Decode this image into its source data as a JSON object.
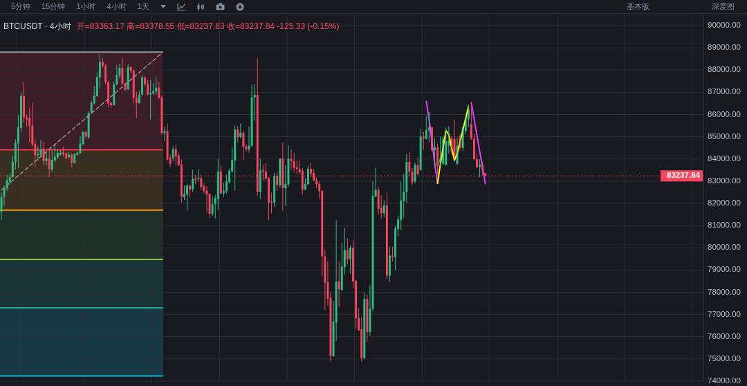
{
  "chart_data": {
    "type": "candlestick",
    "title": "BTCUSDT · 4小时",
    "subtitle": "开=83363.17 高=83378.55 低=83237.83 收=83237.84 -125.33 (-0.15%)",
    "annotations": [
      "5分钟",
      "15分钟",
      "1小时",
      "4小时",
      "1天",
      "基本版",
      "深度图"
    ],
    "categories": [
      null,
      null,
      null,
      null,
      null,
      null,
      null,
      null,
      null,
      null,
      null,
      null,
      null,
      null,
      null,
      null,
      null,
      null,
      null,
      null,
      null,
      null,
      null,
      null,
      null,
      null,
      null,
      null,
      null,
      null,
      null,
      null,
      null,
      null,
      null,
      null,
      null,
      null,
      null,
      null,
      null,
      null,
      null,
      null,
      null,
      null,
      null,
      null,
      null,
      null,
      null,
      null,
      null,
      null,
      null,
      null,
      null,
      null,
      null,
      null,
      null,
      null,
      null,
      null,
      null,
      null,
      null,
      null,
      null,
      null,
      null,
      null,
      null,
      null,
      null,
      null,
      null,
      null,
      null,
      null,
      null,
      null,
      null,
      null,
      null,
      null,
      null,
      null,
      null,
      null,
      null,
      null,
      null,
      null,
      null,
      null,
      null,
      null,
      null,
      null,
      null,
      null,
      null,
      null,
      null,
      null,
      null,
      null,
      null,
      null,
      null,
      null,
      null,
      null,
      null,
      null,
      null,
      null,
      null,
      null,
      null,
      null,
      null,
      null,
      null,
      null,
      null,
      null,
      null,
      null,
      null,
      null,
      null,
      null,
      null,
      null,
      null,
      null,
      null,
      null,
      null,
      null,
      null,
      null,
      null,
      null,
      null,
      null,
      null,
      null,
      null,
      null,
      null,
      null,
      null,
      null,
      null,
      null,
      null,
      null,
      null,
      null,
      null,
      null,
      null,
      null,
      null,
      null,
      null,
      null,
      null,
      null,
      null,
      null,
      null,
      null,
      null,
      null,
      null,
      null,
      null,
      null,
      null,
      null,
      null,
      null,
      null,
      null,
      null,
      null,
      null,
      null,
      null,
      null,
      null,
      null,
      null,
      null,
      null,
      null,
      null,
      null,
      null,
      null,
      null,
      null,
      null,
      null,
      null,
      null,
      null,
      null,
      null,
      null,
      null,
      null,
      null,
      null,
      null,
      null,
      null,
      null,
      null,
      null,
      null,
      null,
      null,
      null,
      null,
      null,
      null,
      null,
      null,
      null,
      null,
      null,
      null,
      null,
      null,
      null,
      null,
      null,
      null,
      null,
      null,
      null,
      null,
      null,
      null,
      null
    ],
    "ohlc": [
      [
        81630,
        82500,
        81250,
        82290
      ],
      [
        82290,
        82810,
        81880,
        82700
      ],
      [
        82670,
        83270,
        82550,
        83040
      ],
      [
        82980,
        83370,
        82840,
        83180
      ],
      [
        83180,
        84140,
        83160,
        83880
      ],
      [
        83860,
        84880,
        83520,
        84720
      ],
      [
        84700,
        85980,
        83590,
        85420
      ],
      [
        85400,
        87000,
        85210,
        86850
      ],
      [
        86830,
        87460,
        85640,
        85880
      ],
      [
        85870,
        86010,
        85440,
        85780
      ],
      [
        85830,
        86290,
        84750,
        85500
      ],
      [
        85500,
        86520,
        84580,
        84650
      ],
      [
        84680,
        84900,
        83660,
        84170
      ],
      [
        84170,
        84580,
        83930,
        84210
      ],
      [
        84190,
        84850,
        84090,
        84440
      ],
      [
        84440,
        84780,
        83700,
        83900
      ],
      [
        83900,
        84320,
        83700,
        84030
      ],
      [
        84010,
        84390,
        83180,
        83540
      ],
      [
        83520,
        84390,
        83400,
        83960
      ],
      [
        83930,
        84620,
        83860,
        84090
      ],
      [
        84070,
        84440,
        83980,
        84270
      ],
      [
        84190,
        84410,
        84140,
        84290
      ],
      [
        84290,
        84550,
        84110,
        84210
      ],
      [
        84250,
        84290,
        83980,
        84030
      ],
      [
        84070,
        84310,
        84050,
        84190
      ],
      [
        84190,
        84260,
        83620,
        83830
      ],
      [
        83830,
        84270,
        83780,
        84210
      ],
      [
        84190,
        84310,
        84160,
        84290
      ],
      [
        84260,
        85030,
        84240,
        84700
      ],
      [
        84680,
        85260,
        84600,
        85210
      ],
      [
        85210,
        85260,
        84950,
        85010
      ],
      [
        84980,
        86130,
        84900,
        86070
      ],
      [
        86070,
        86620,
        86050,
        86520
      ],
      [
        86500,
        87280,
        86440,
        86850
      ],
      [
        86830,
        87890,
        86800,
        87690
      ],
      [
        87670,
        88740,
        87160,
        88370
      ],
      [
        88370,
        88540,
        88080,
        88200
      ],
      [
        88200,
        88300,
        87360,
        87460
      ],
      [
        87460,
        87490,
        86340,
        86490
      ],
      [
        86520,
        86590,
        86320,
        86420
      ],
      [
        86420,
        87490,
        86390,
        87360
      ],
      [
        87340,
        88230,
        87310,
        87770
      ],
      [
        87750,
        88280,
        87620,
        88100
      ],
      [
        88100,
        88540,
        87340,
        87380
      ],
      [
        87380,
        87460,
        87050,
        87110
      ],
      [
        87140,
        88260,
        87080,
        88130
      ],
      [
        88130,
        88180,
        87870,
        87960
      ],
      [
        87980,
        88030,
        86440,
        86750
      ],
      [
        86750,
        87030,
        85850,
        86520
      ],
      [
        86520,
        87050,
        86490,
        86900
      ],
      [
        86900,
        87770,
        86850,
        87670
      ],
      [
        87670,
        87720,
        87260,
        87380
      ],
      [
        87380,
        87570,
        86850,
        86900
      ],
      [
        86900,
        87550,
        85780,
        86970
      ],
      [
        86950,
        87410,
        86900,
        87050
      ],
      [
        87030,
        87720,
        86900,
        87210
      ],
      [
        87210,
        87490,
        86700,
        86750
      ],
      [
        86770,
        86850,
        85110,
        85160
      ],
      [
        85160,
        85440,
        84800,
        85260
      ],
      [
        85250,
        85600,
        83930,
        83980
      ],
      [
        84060,
        84210,
        83650,
        83780
      ],
      [
        84060,
        84570,
        83900,
        84440
      ],
      [
        84440,
        84640,
        83720,
        84110
      ],
      [
        84160,
        84290,
        83680,
        83720
      ],
      [
        83750,
        83990,
        82040,
        82290
      ],
      [
        82290,
        82800,
        82160,
        82420
      ],
      [
        82390,
        82880,
        81650,
        82800
      ],
      [
        82800,
        82830,
        82290,
        82620
      ],
      [
        82630,
        83520,
        82520,
        83110
      ],
      [
        83110,
        83290,
        82880,
        83050
      ],
      [
        83090,
        83550,
        82980,
        83140
      ],
      [
        83140,
        83290,
        82590,
        82730
      ],
      [
        82780,
        82930,
        82450,
        82550
      ],
      [
        82570,
        82780,
        81600,
        82390
      ],
      [
        82420,
        82450,
        81340,
        81530
      ],
      [
        81530,
        82320,
        81430,
        81960
      ],
      [
        81960,
        82390,
        81320,
        82250
      ],
      [
        82200,
        83990,
        81700,
        83440
      ],
      [
        83440,
        83720,
        82420,
        82450
      ],
      [
        82450,
        82930,
        82290,
        82570
      ],
      [
        82550,
        83290,
        82450,
        82980
      ],
      [
        82960,
        83550,
        82900,
        83470
      ],
      [
        83440,
        84520,
        83390,
        83960
      ],
      [
        83930,
        85520,
        82570,
        85320
      ],
      [
        85320,
        85490,
        84740,
        84980
      ],
      [
        84980,
        85590,
        84930,
        85180
      ],
      [
        85180,
        85290,
        83930,
        84540
      ],
      [
        84570,
        84670,
        84330,
        84440
      ],
      [
        84440,
        85460,
        84290,
        84600
      ],
      [
        84600,
        87360,
        84530,
        86770
      ],
      [
        86770,
        87370,
        85740,
        86890
      ],
      [
        86890,
        88530,
        82350,
        82520
      ],
      [
        82520,
        84010,
        82200,
        83490
      ],
      [
        83490,
        83740,
        83030,
        83440
      ],
      [
        83440,
        83800,
        83060,
        83110
      ],
      [
        83140,
        83190,
        81230,
        82040
      ],
      [
        82060,
        82490,
        81550,
        82010
      ],
      [
        82040,
        83370,
        81840,
        83240
      ],
      [
        83240,
        83410,
        82590,
        82830
      ],
      [
        82830,
        84030,
        82700,
        84010
      ],
      [
        84010,
        84740,
        81670,
        82680
      ],
      [
        82680,
        83720,
        81880,
        82880
      ],
      [
        82860,
        84620,
        82760,
        84010
      ],
      [
        84010,
        84440,
        83490,
        83900
      ],
      [
        83900,
        84270,
        83390,
        83600
      ],
      [
        83620,
        83930,
        83340,
        83550
      ],
      [
        83550,
        83930,
        83340,
        83410
      ],
      [
        83470,
        83600,
        82390,
        82620
      ],
      [
        82620,
        83140,
        82590,
        82880
      ],
      [
        82860,
        83700,
        82830,
        83550
      ],
      [
        83550,
        83820,
        83190,
        83340
      ],
      [
        83370,
        83550,
        83000,
        83030
      ],
      [
        83050,
        83190,
        82680,
        82860
      ],
      [
        82880,
        82980,
        82210,
        82550
      ],
      [
        82570,
        82590,
        78730,
        79620
      ],
      [
        79620,
        79910,
        77200,
        78430
      ],
      [
        78450,
        79390,
        77370,
        77710
      ],
      [
        77740,
        77990,
        74890,
        75120
      ],
      [
        75120,
        77610,
        75100,
        76690
      ],
      [
        76640,
        81250,
        75810,
        78490
      ],
      [
        78490,
        79370,
        77340,
        78140
      ],
      [
        78110,
        80230,
        78060,
        79160
      ],
      [
        79130,
        80900,
        78800,
        79900
      ],
      [
        79900,
        80430,
        79240,
        79490
      ],
      [
        79490,
        80110,
        78830,
        80000
      ],
      [
        80000,
        80360,
        78160,
        78490
      ],
      [
        78520,
        78570,
        76340,
        76830
      ],
      [
        76850,
        77290,
        76240,
        76300
      ],
      [
        76340,
        76880,
        74880,
        75040
      ],
      [
        75040,
        77980,
        75010,
        77700
      ],
      [
        77700,
        77900,
        75780,
        76210
      ],
      [
        76210,
        78310,
        76030,
        77260
      ],
      [
        77260,
        82990,
        77140,
        82340
      ],
      [
        82310,
        83610,
        82280,
        82610
      ],
      [
        82610,
        82750,
        81490,
        81760
      ],
      [
        81800,
        82360,
        81310,
        81560
      ],
      [
        81560,
        82130,
        81390,
        81900
      ],
      [
        81900,
        82480,
        78590,
        78750
      ],
      [
        78750,
        80050,
        78470,
        79650
      ],
      [
        79650,
        80050,
        79390,
        79590
      ],
      [
        79590,
        80980,
        78980,
        80870
      ],
      [
        80840,
        81460,
        80520,
        81280
      ],
      [
        81250,
        82990,
        80800,
        82130
      ],
      [
        82100,
        83330,
        81360,
        82510
      ],
      [
        82510,
        84220,
        82030,
        83870
      ],
      [
        83870,
        84300,
        83200,
        83430
      ],
      [
        83430,
        83590,
        82820,
        82950
      ],
      [
        82990,
        83840,
        82890,
        83740
      ],
      [
        83730,
        84040,
        83270,
        83320
      ],
      [
        83500,
        85370,
        83480,
        85010
      ],
      [
        85010,
        85220,
        84400,
        84910
      ],
      [
        84910,
        85940,
        84860,
        85300
      ],
      [
        85280,
        86120,
        84760,
        85420
      ],
      [
        85420,
        85470,
        84350,
        84400
      ],
      [
        84400,
        84960,
        83630,
        84520
      ],
      [
        84520,
        84690,
        83270,
        83680
      ],
      [
        83820,
        85010,
        83680,
        83990
      ],
      [
        83780,
        85030,
        83730,
        84910
      ],
      [
        83730,
        85420,
        83700,
        84810
      ],
      [
        84600,
        85470,
        84250,
        84810
      ],
      [
        84910,
        85030,
        84190,
        84350
      ],
      [
        84910,
        85780,
        83990,
        84090
      ],
      [
        83780,
        84960,
        83730,
        84600
      ],
      [
        85010,
        85120,
        84400,
        84500
      ],
      [
        84500,
        85470,
        84350,
        85420
      ],
      [
        85270,
        85880,
        85120,
        85830
      ],
      [
        85780,
        86450,
        85420,
        86240
      ],
      [
        85580,
        86500,
        84860,
        84910
      ],
      [
        84910,
        85120,
        83940,
        83990
      ],
      [
        83990,
        84250,
        83580,
        83630
      ],
      [
        83630,
        83990,
        83170,
        83750
      ],
      [
        83750,
        83890,
        83270,
        83480
      ],
      [
        83363.17,
        83378.55,
        83237.83,
        83237.84
      ],
      null,
      null,
      null,
      null,
      null,
      null,
      null,
      null,
      null,
      null,
      null,
      null,
      null,
      null,
      null,
      null,
      null,
      null,
      null,
      null,
      null,
      null,
      null,
      null,
      null,
      null,
      null,
      null,
      null,
      null,
      null,
      null,
      null,
      null,
      null,
      null,
      null,
      null,
      null,
      null,
      null,
      null,
      null,
      null,
      null,
      null,
      null,
      null,
      null,
      null,
      null,
      null,
      null,
      null,
      null,
      null,
      null,
      null,
      null,
      null,
      null,
      null,
      null,
      null,
      null,
      null,
      null,
      null,
      null,
      null,
      null,
      null,
      null,
      null,
      null,
      null,
      null
    ],
    "colors": [
      "#2ebd85",
      "#2ebd85",
      "#2ebd85",
      "#2ebd85",
      "#2ebd85",
      "#2ebd85",
      "#2ebd85",
      "#2ebd85",
      "#f6465d",
      "#f6465d",
      "#f6465d",
      "#f6465d",
      "#f6465d",
      "#2ebd85",
      "#2ebd85",
      "#f6465d",
      "#2ebd85",
      "#f6465d",
      "#2ebd85",
      "#2ebd85",
      "#2ebd85",
      "#2ebd85",
      "#f6465d",
      "#f6465d",
      "#2ebd85",
      "#f6465d",
      "#2ebd85",
      "#2ebd85",
      "#2ebd85",
      "#2ebd85",
      "#f6465d",
      "#2ebd85",
      "#2ebd85",
      "#2ebd85",
      "#2ebd85",
      "#2ebd85",
      "#f6465d",
      "#f6465d",
      "#f6465d",
      "#f6465d",
      "#2ebd85",
      "#2ebd85",
      "#2ebd85",
      "#f6465d",
      "#f6465d",
      "#2ebd85",
      "#f6465d",
      "#f6465d",
      "#f6465d",
      "#2ebd85",
      "#2ebd85",
      "#f6465d",
      "#f6465d",
      "#2ebd85",
      "#2ebd85",
      "#2ebd85",
      "#f6465d",
      "#f6465d",
      "#2ebd85",
      "#f6465d",
      "#f6465d",
      "#2ebd85",
      "#f6465d",
      "#f6465d",
      "#f6465d",
      "#2ebd85",
      "#2ebd85",
      "#f6465d",
      "#2ebd85",
      "#f6465d",
      "#2ebd85",
      "#f6465d",
      "#f6465d",
      "#f6465d",
      "#f6465d",
      "#2ebd85",
      "#2ebd85",
      "#2ebd85",
      "#f6465d",
      "#2ebd85",
      "#2ebd85",
      "#2ebd85",
      "#2ebd85",
      "#2ebd85",
      "#f6465d",
      "#2ebd85",
      "#f6465d",
      "#f6465d",
      "#2ebd85",
      "#2ebd85",
      "#2ebd85",
      "#f6465d",
      "#2ebd85",
      "#f6465d",
      "#f6465d",
      "#f6465d",
      "#f6465d",
      "#2ebd85",
      "#f6465d",
      "#2ebd85",
      "#f6465d",
      "#2ebd85",
      "#2ebd85",
      "#f6465d",
      "#f6465d",
      "#f6465d",
      "#f6465d",
      "#f6465d",
      "#2ebd85",
      "#2ebd85",
      "#f6465d",
      "#f6465d",
      "#f6465d",
      "#f6465d",
      "#f6465d",
      "#f6465d",
      "#f6465d",
      "#f6465d",
      "#2ebd85",
      "#2ebd85",
      "#f6465d",
      "#2ebd85",
      "#2ebd85",
      "#f6465d",
      "#2ebd85",
      "#f6465d",
      "#f6465d",
      "#f6465d",
      "#f6465d",
      "#2ebd85",
      "#f6465d",
      "#2ebd85",
      "#2ebd85",
      "#2ebd85",
      "#f6465d",
      "#f6465d",
      "#2ebd85",
      "#f6465d",
      "#2ebd85",
      "#f6465d",
      "#2ebd85",
      "#2ebd85",
      "#2ebd85",
      "#2ebd85",
      "#2ebd85",
      "#f6465d",
      "#f6465d",
      "#2ebd85",
      "#f6465d",
      "#2ebd85",
      "#f6465d",
      "#2ebd85",
      "#2ebd85",
      "#f6465d",
      "#2ebd85",
      "#f6465d",
      "#2ebd85",
      "#2ebd85",
      "#2ebd85",
      "#2ebd85",
      "#f6465d",
      "#f6465d",
      "#2ebd85",
      "#f6465d",
      "#2ebd85",
      "#2ebd85",
      "#2ebd85",
      "#f6465d",
      "#f6465d",
      "#f6465d",
      "#2ebd85",
      "#f6465d",
      "#f6465d",
      null,
      null,
      null,
      null,
      null,
      null,
      null,
      null,
      null,
      null,
      null,
      null,
      null,
      null,
      null,
      null,
      null,
      null,
      null,
      null,
      null,
      null,
      null,
      null,
      null,
      null,
      null,
      null,
      null,
      null,
      null,
      null,
      null,
      null,
      null,
      null,
      null,
      null,
      null,
      null,
      null,
      null,
      null,
      null,
      null,
      null,
      null,
      null,
      null,
      null,
      null,
      null,
      null,
      null,
      null,
      null,
      null,
      null,
      null,
      null,
      null,
      null,
      null,
      null,
      null,
      null,
      null,
      null,
      null,
      null,
      null,
      null,
      null,
      null,
      null,
      null,
      null
    ],
    "series": [
      {
        "type": "line",
        "color": "#9d8f95",
        "line_style": "dashed",
        "values": [
          82600,
          82710,
          82820,
          82920,
          83030,
          83140,
          83250,
          83360,
          83460,
          83570,
          83680,
          83790,
          83900,
          84000,
          84110,
          84220,
          84330,
          84440,
          84540,
          84650,
          84760,
          84870,
          84980,
          85080,
          85190,
          85300,
          85410,
          85520,
          85620,
          85730,
          85840,
          85950,
          86060,
          86160,
          86270,
          86380,
          86490,
          86600,
          86700,
          86810,
          86920,
          87030,
          87140,
          87240,
          87350,
          87460,
          87570,
          87680,
          87780,
          87890,
          88000,
          88110,
          88220,
          88320,
          88430,
          88540,
          88650,
          88760,
          null,
          null,
          null,
          null,
          null,
          null,
          null,
          null,
          null,
          null,
          null,
          null,
          null,
          null,
          null,
          null,
          null,
          null,
          null,
          null,
          null,
          null,
          null,
          null,
          null,
          null,
          null,
          null,
          null,
          null,
          null,
          null,
          null,
          null,
          null,
          null,
          null,
          null,
          null,
          null,
          null,
          null,
          null,
          null,
          null,
          null,
          null,
          null,
          null,
          null,
          null,
          null,
          null,
          null,
          null,
          null,
          null,
          null,
          null,
          null,
          null,
          null,
          null,
          null,
          null,
          null,
          null,
          null,
          null,
          null,
          null,
          null,
          null,
          null,
          null,
          null,
          null,
          null,
          null,
          null,
          null,
          null,
          null,
          null,
          null,
          null,
          null,
          null,
          null,
          null,
          null,
          null,
          null,
          null,
          null,
          null,
          null,
          null,
          null,
          null,
          null,
          null,
          null,
          null,
          null,
          null,
          null,
          null,
          null,
          null,
          null,
          null,
          null,
          null,
          null,
          null,
          null,
          null,
          null,
          null,
          null,
          null,
          null,
          null,
          null,
          null,
          null,
          null,
          null,
          null,
          null,
          null,
          null,
          null,
          null,
          null,
          null,
          null,
          null,
          null,
          null,
          null,
          null,
          null,
          null,
          null,
          null,
          null,
          null,
          null,
          null,
          null,
          null,
          null,
          null,
          null,
          null,
          null,
          null,
          null,
          null,
          null,
          null,
          null,
          null,
          null,
          null,
          null,
          null,
          null,
          null,
          null,
          null,
          null,
          null,
          null,
          null,
          null,
          null,
          null,
          null,
          null,
          null,
          null,
          null,
          null,
          null,
          null,
          null,
          null,
          null,
          null
        ]
      },
      {
        "type": "line",
        "color": "#e040fb",
        "values": [
          null,
          null,
          null,
          null,
          null,
          null,
          null,
          null,
          null,
          null,
          null,
          null,
          null,
          null,
          null,
          null,
          null,
          null,
          null,
          null,
          null,
          null,
          null,
          null,
          null,
          null,
          null,
          null,
          null,
          null,
          null,
          null,
          null,
          null,
          null,
          null,
          null,
          null,
          null,
          null,
          null,
          null,
          null,
          null,
          null,
          null,
          null,
          null,
          null,
          null,
          null,
          null,
          null,
          null,
          null,
          null,
          null,
          null,
          null,
          null,
          null,
          null,
          null,
          null,
          null,
          null,
          null,
          null,
          null,
          null,
          null,
          null,
          null,
          null,
          null,
          null,
          null,
          null,
          null,
          null,
          null,
          null,
          null,
          null,
          null,
          null,
          null,
          null,
          null,
          null,
          null,
          null,
          null,
          null,
          null,
          null,
          null,
          null,
          null,
          null,
          null,
          null,
          null,
          null,
          null,
          null,
          null,
          null,
          null,
          null,
          null,
          null,
          null,
          null,
          null,
          null,
          null,
          null,
          null,
          null,
          null,
          null,
          null,
          null,
          null,
          null,
          null,
          null,
          null,
          null,
          null,
          null,
          null,
          null,
          null,
          null,
          null,
          null,
          null,
          null,
          null,
          null,
          null,
          null,
          null,
          null,
          null,
          null,
          null,
          null,
          null,
          86590,
          85790,
          84800,
          83800,
          82900,
          null,
          null,
          null,
          null,
          null,
          null,
          null,
          null,
          null,
          null,
          null,
          86530,
          85800,
          85070,
          84340,
          83610,
          82880,
          null,
          null,
          null,
          null,
          null,
          null,
          null,
          null,
          null,
          null,
          null,
          null,
          null,
          null,
          null,
          null,
          null,
          null,
          null,
          null,
          null,
          null,
          null,
          null,
          null,
          null,
          null,
          null,
          null,
          null,
          null,
          null,
          null,
          null,
          null,
          null,
          null,
          null,
          null,
          null,
          null,
          null,
          null,
          null,
          null,
          null,
          null,
          null,
          null,
          null,
          null,
          null,
          null,
          null,
          null,
          null,
          null,
          null,
          null,
          null,
          null,
          null,
          null,
          null,
          null,
          null,
          null,
          null,
          null,
          null,
          null,
          null,
          null,
          null,
          null,
          null,
          null
        ]
      },
      {
        "type": "line",
        "color": "#ffff00",
        "values": [
          null,
          null,
          null,
          null,
          null,
          null,
          null,
          null,
          null,
          null,
          null,
          null,
          null,
          null,
          null,
          null,
          null,
          null,
          null,
          null,
          null,
          null,
          null,
          null,
          null,
          null,
          null,
          null,
          null,
          null,
          null,
          null,
          null,
          null,
          null,
          null,
          null,
          null,
          null,
          null,
          null,
          null,
          null,
          null,
          null,
          null,
          null,
          null,
          null,
          null,
          null,
          null,
          null,
          null,
          null,
          null,
          null,
          null,
          null,
          null,
          null,
          null,
          null,
          null,
          null,
          null,
          null,
          null,
          null,
          null,
          null,
          null,
          null,
          null,
          null,
          null,
          null,
          null,
          null,
          null,
          null,
          null,
          null,
          null,
          null,
          null,
          null,
          null,
          null,
          null,
          null,
          null,
          null,
          null,
          null,
          null,
          null,
          null,
          null,
          null,
          null,
          null,
          null,
          null,
          null,
          null,
          null,
          null,
          null,
          null,
          null,
          null,
          null,
          null,
          null,
          null,
          null,
          null,
          null,
          null,
          null,
          null,
          null,
          null,
          null,
          null,
          null,
          null,
          null,
          null,
          null,
          null,
          null,
          null,
          null,
          null,
          null,
          null,
          null,
          null,
          null,
          null,
          null,
          null,
          null,
          null,
          null,
          null,
          null,
          null,
          null,
          null,
          null,
          null,
          null,
          82910,
          83750,
          84520,
          85280,
          85100,
          84520,
          83940,
          84250,
          84770,
          85300,
          85820,
          86350,
          null,
          null,
          null,
          null,
          null,
          null,
          null,
          null,
          null,
          null,
          null,
          null,
          null,
          null,
          null,
          null,
          null,
          null,
          null,
          null,
          null,
          null,
          null,
          null,
          null,
          null,
          null,
          null,
          null,
          null,
          null,
          null,
          null,
          null,
          null,
          null,
          null,
          null,
          null,
          null,
          null,
          null,
          null,
          null,
          null,
          null,
          null,
          null,
          null,
          null,
          null,
          null,
          null,
          null,
          null,
          null,
          null,
          null,
          null,
          null,
          null,
          null,
          null,
          null,
          null,
          null,
          null,
          null,
          null,
          null,
          null,
          null,
          null,
          null,
          null,
          null,
          null,
          null,
          null,
          null,
          null,
          null,
          null
        ]
      }
    ],
    "ylim": [
      74000,
      90500
    ],
    "yticks": [
      {
        "value": 74000,
        "label": "74000.00"
      },
      {
        "value": 75000,
        "label": "75000.00"
      },
      {
        "value": 76000,
        "label": "76000.00"
      },
      {
        "value": 77000,
        "label": "77000.00"
      },
      {
        "value": 78000,
        "label": "78000.00"
      },
      {
        "value": 79000,
        "label": "79000.00"
      },
      {
        "value": 80000,
        "label": "80000.00"
      },
      {
        "value": 81000,
        "label": "81000.00"
      },
      {
        "value": 82000,
        "label": "82000.00"
      },
      {
        "value": 83000,
        "label": "83000.00"
      },
      {
        "value": 84000,
        "label": "84000.00"
      },
      {
        "value": 85000,
        "label": "85000.00"
      },
      {
        "value": 86000,
        "label": "86000.00"
      },
      {
        "value": 87000,
        "label": "87000.00"
      },
      {
        "value": 88000,
        "label": "88000.00"
      },
      {
        "value": 89000,
        "label": "89000.00"
      },
      {
        "value": 90000,
        "label": "90000.00"
      }
    ],
    "grid": true,
    "bands": [
      {
        "axis": "y",
        "from": 84410,
        "to": 88810,
        "color": "#3b1e27"
      },
      {
        "axis": "y",
        "from": 81700,
        "to": 84410,
        "color": "#3a2e1f"
      },
      {
        "axis": "y",
        "from": 79480,
        "to": 81700,
        "color": "#1e3028"
      },
      {
        "axis": "y",
        "from": 77300,
        "to": 79480,
        "color": "#1a3537"
      },
      {
        "axis": "y",
        "from": 74230,
        "to": 77300,
        "color": "#173a44"
      }
    ],
    "ref_lines": [
      {
        "axis": "y",
        "value": 88810,
        "color": "#9598a1"
      },
      {
        "axis": "y",
        "value": 84410,
        "color": "#f23645"
      },
      {
        "axis": "y",
        "value": 81700,
        "color": "#ff9800"
      },
      {
        "axis": "y",
        "value": 79480,
        "color": "#8bc34a"
      },
      {
        "axis": "y",
        "value": 77300,
        "color": "#26a69a"
      },
      {
        "axis": "y",
        "value": 74230,
        "color": "#00bcd4"
      },
      {
        "axis": "y",
        "value": 83237.84,
        "label": "83237.84",
        "color": "#f6465d",
        "line_style": "dotted"
      }
    ]
  }
}
